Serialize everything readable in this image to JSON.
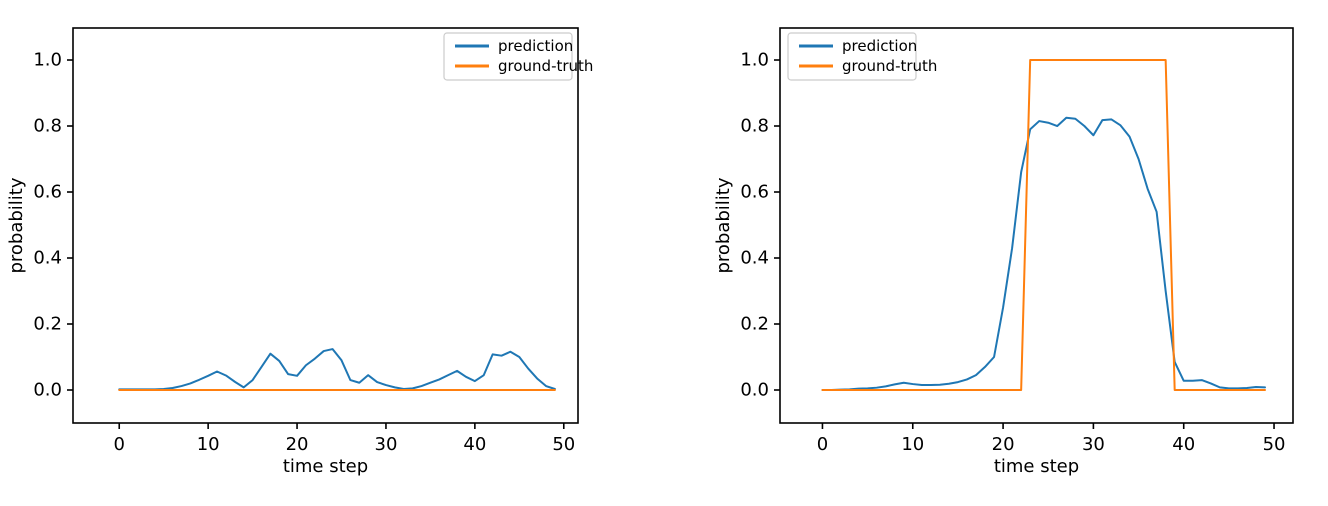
{
  "page": {
    "background": "#ffffff"
  },
  "chart_data": [
    {
      "type": "line",
      "position": "left",
      "title": "",
      "xlabel": "time step",
      "ylabel": "probability",
      "xticks": [
        0,
        10,
        20,
        30,
        40,
        50
      ],
      "ytick_labels": [
        "0.0",
        "0.2",
        "0.4",
        "0.6",
        "0.8",
        "1.0"
      ],
      "xlim": [
        -5.2,
        51.6
      ],
      "ylim": [
        -0.1,
        1.097
      ],
      "grid": false,
      "legend": {
        "position": "upper-right",
        "entries": [
          "prediction",
          "ground-truth"
        ]
      },
      "x": [
        0,
        1,
        2,
        3,
        4,
        5,
        6,
        7,
        8,
        9,
        10,
        11,
        12,
        13,
        14,
        15,
        16,
        17,
        18,
        19,
        20,
        21,
        22,
        23,
        24,
        25,
        26,
        27,
        28,
        29,
        30,
        31,
        32,
        33,
        34,
        35,
        36,
        37,
        38,
        39,
        40,
        41,
        42,
        43,
        44,
        45,
        46,
        47,
        48,
        49
      ],
      "series": [
        {
          "name": "prediction",
          "color": "#1f77b4",
          "values": [
            0.002,
            0.002,
            0.002,
            0.002,
            0.002,
            0.003,
            0.006,
            0.012,
            0.02,
            0.031,
            0.043,
            0.056,
            0.044,
            0.025,
            0.008,
            0.03,
            0.07,
            0.11,
            0.088,
            0.048,
            0.043,
            0.075,
            0.095,
            0.118,
            0.124,
            0.09,
            0.03,
            0.022,
            0.045,
            0.024,
            0.015,
            0.008,
            0.003,
            0.005,
            0.012,
            0.022,
            0.032,
            0.045,
            0.058,
            0.04,
            0.027,
            0.045,
            0.108,
            0.104,
            0.116,
            0.1,
            0.065,
            0.035,
            0.012,
            0.003
          ]
        },
        {
          "name": "ground-truth",
          "color": "#ff7f0e",
          "values": [
            0,
            0,
            0,
            0,
            0,
            0,
            0,
            0,
            0,
            0,
            0,
            0,
            0,
            0,
            0,
            0,
            0,
            0,
            0,
            0,
            0,
            0,
            0,
            0,
            0,
            0,
            0,
            0,
            0,
            0,
            0,
            0,
            0,
            0,
            0,
            0,
            0,
            0,
            0,
            0,
            0,
            0,
            0,
            0,
            0,
            0,
            0,
            0,
            0,
            0
          ]
        }
      ]
    },
    {
      "type": "line",
      "position": "right",
      "title": "",
      "xlabel": "time step",
      "ylabel": "probability",
      "xticks": [
        0,
        10,
        20,
        30,
        40,
        50
      ],
      "ytick_labels": [
        "0.0",
        "0.2",
        "0.4",
        "0.6",
        "0.8",
        "1.0"
      ],
      "xlim": [
        -4.7,
        52.1
      ],
      "ylim": [
        -0.1,
        1.097
      ],
      "grid": false,
      "legend": {
        "position": "upper-left",
        "entries": [
          "prediction",
          "ground-truth"
        ]
      },
      "x": [
        0,
        1,
        2,
        3,
        4,
        5,
        6,
        7,
        8,
        9,
        10,
        11,
        12,
        13,
        14,
        15,
        16,
        17,
        18,
        19,
        20,
        21,
        22,
        23,
        24,
        25,
        26,
        27,
        28,
        29,
        30,
        31,
        32,
        33,
        34,
        35,
        36,
        37,
        38,
        39,
        40,
        41,
        42,
        43,
        44,
        45,
        46,
        47,
        48,
        49
      ],
      "series": [
        {
          "name": "prediction",
          "color": "#1f77b4",
          "values": [
            0.0,
            0.0,
            0.001,
            0.002,
            0.004,
            0.005,
            0.007,
            0.011,
            0.017,
            0.022,
            0.018,
            0.015,
            0.015,
            0.016,
            0.019,
            0.024,
            0.032,
            0.045,
            0.07,
            0.1,
            0.25,
            0.43,
            0.66,
            0.79,
            0.815,
            0.81,
            0.8,
            0.825,
            0.822,
            0.8,
            0.772,
            0.818,
            0.82,
            0.802,
            0.768,
            0.7,
            0.61,
            0.54,
            0.3,
            0.085,
            0.028,
            0.028,
            0.03,
            0.02,
            0.008,
            0.005,
            0.005,
            0.006,
            0.009,
            0.008
          ]
        },
        {
          "name": "ground-truth",
          "color": "#ff7f0e",
          "values": [
            0,
            0,
            0,
            0,
            0,
            0,
            0,
            0,
            0,
            0,
            0,
            0,
            0,
            0,
            0,
            0,
            0,
            0,
            0,
            0,
            0,
            0,
            0,
            1,
            1,
            1,
            1,
            1,
            1,
            1,
            1,
            1,
            1,
            1,
            1,
            1,
            1,
            1,
            1,
            0,
            0,
            0,
            0,
            0,
            0,
            0,
            0,
            0,
            0,
            0
          ]
        }
      ]
    }
  ]
}
